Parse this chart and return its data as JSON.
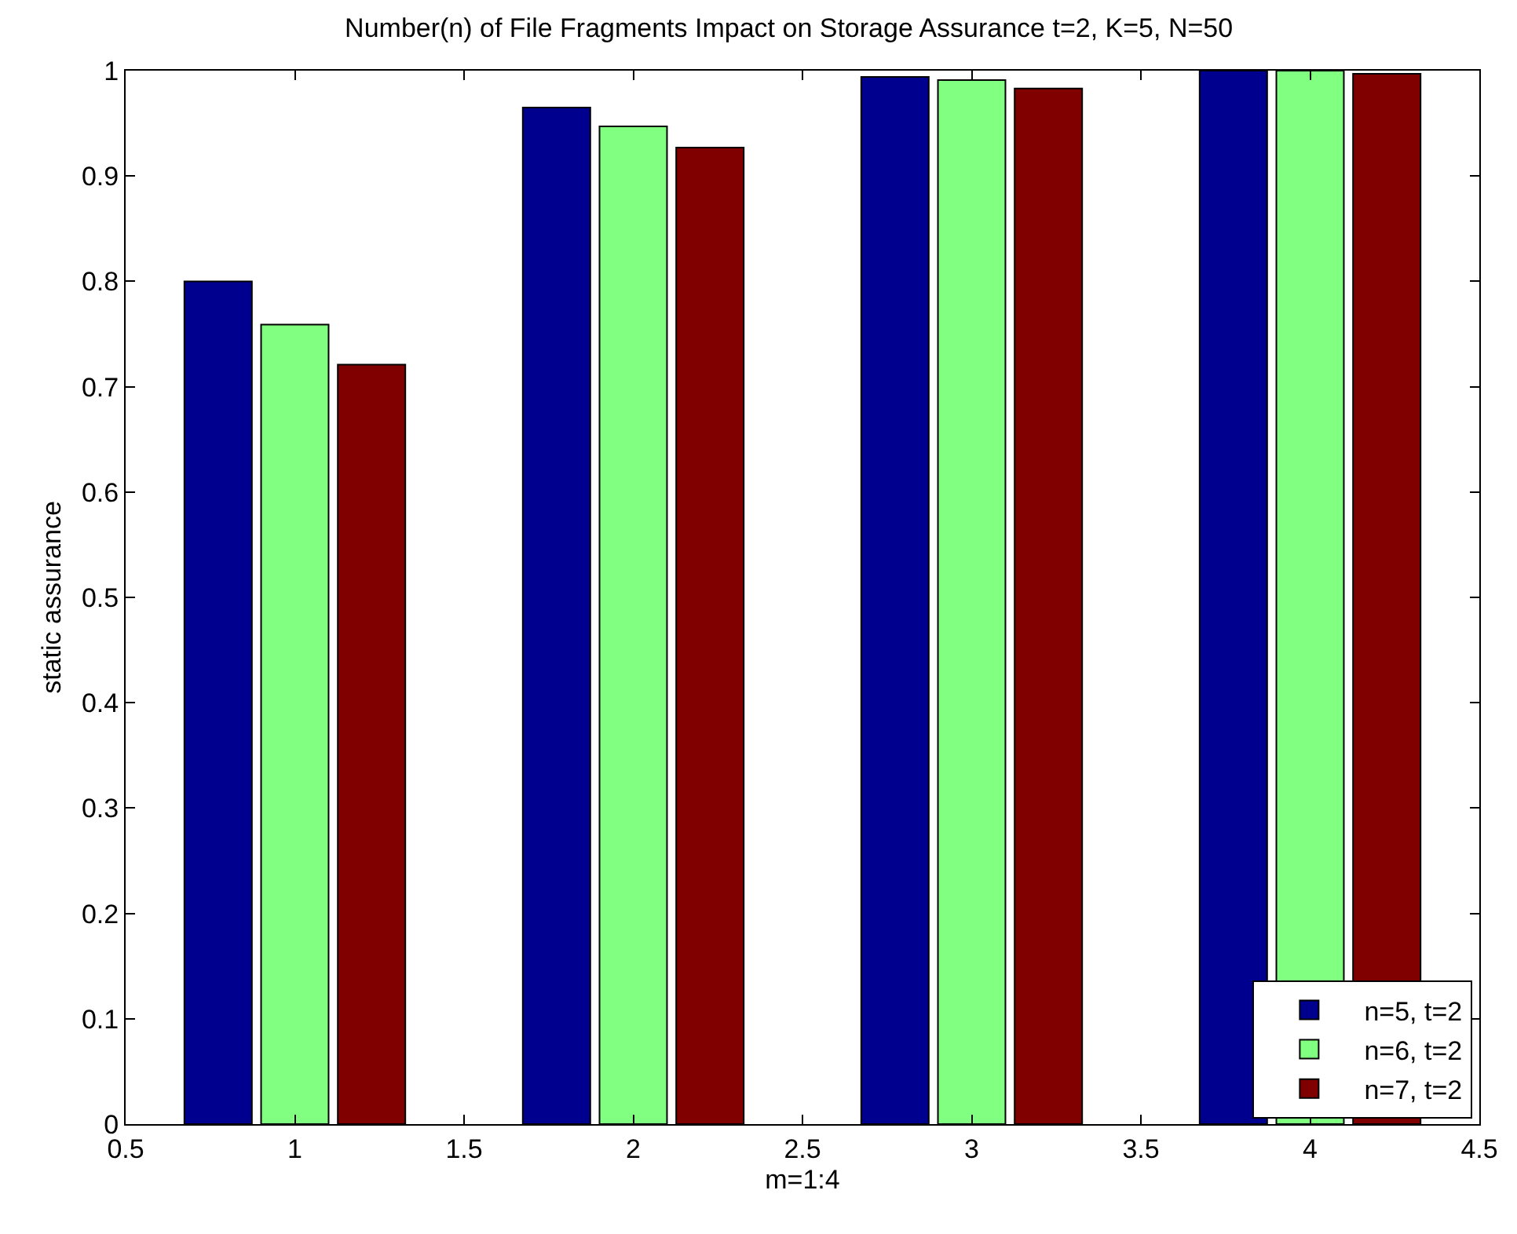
{
  "chart_data": {
    "type": "bar",
    "title": "Number(n) of File Fragments Impact on Storage Assurance t=2, K=5, N=50",
    "xlabel": "m=1:4",
    "ylabel": "static assurance",
    "x": [
      1,
      2,
      3,
      4
    ],
    "series": [
      {
        "name": "n=5, t=2",
        "color": "#00008f",
        "values": [
          0.8,
          0.965,
          0.994,
          1.0
        ]
      },
      {
        "name": "n=6, t=2",
        "color": "#80ff80",
        "values": [
          0.759,
          0.947,
          0.991,
          1.0
        ]
      },
      {
        "name": "n=7, t=2",
        "color": "#800000",
        "values": [
          0.721,
          0.927,
          0.983,
          0.997
        ]
      }
    ],
    "xlim": [
      0.5,
      4.5
    ],
    "xticks": [
      0.5,
      1,
      1.5,
      2,
      2.5,
      3,
      3.5,
      4,
      4.5
    ],
    "ylim": [
      0,
      1
    ],
    "yticks": [
      0,
      0.1,
      0.2,
      0.3,
      0.4,
      0.5,
      0.6,
      0.7,
      0.8,
      0.9,
      1
    ],
    "legend": "bottom right"
  }
}
